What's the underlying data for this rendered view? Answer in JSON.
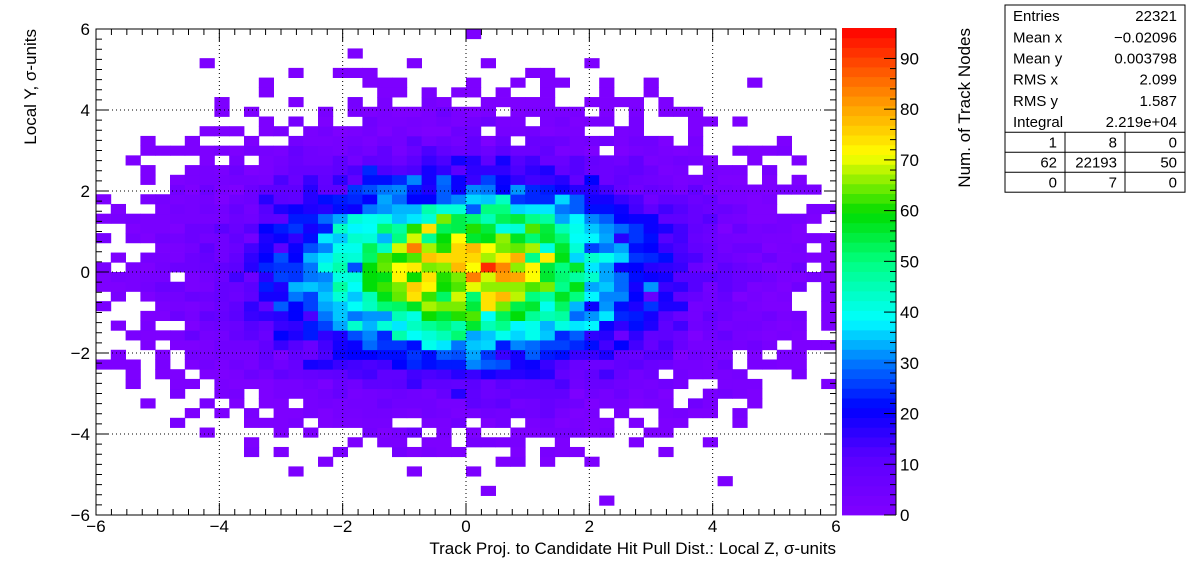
{
  "chart_data": {
    "type": "heatmap",
    "xlabel": "Track Proj. to Candidate Hit Pull Dist.: Local Z, σ-units",
    "ylabel": "Local Y, σ-units",
    "zlabel": "Num. of Track Nodes",
    "xlim": [
      -6,
      6
    ],
    "ylim": [
      -6,
      6
    ],
    "zlim": [
      0,
      96
    ],
    "bins": {
      "nx": 50,
      "ny": 50
    },
    "x_ticks": [
      "−6",
      "−4",
      "−2",
      "0",
      "2",
      "4",
      "6"
    ],
    "y_ticks": [
      "−6",
      "−4",
      "−2",
      "0",
      "2",
      "4",
      "6"
    ],
    "z_ticks": [
      "0",
      "10",
      "20",
      "30",
      "40",
      "50",
      "60",
      "70",
      "80",
      "90"
    ],
    "grid": true,
    "palette": "rainbow",
    "distribution": {
      "entries": 22321,
      "mean_x": -0.02096,
      "mean_y": 0.003798,
      "rms_x": 2.099,
      "rms_y": 1.587,
      "peak_count": 96
    }
  },
  "stats_box": {
    "rows": [
      {
        "label": "Entries",
        "value": "22321"
      },
      {
        "label": "Mean x",
        "value": "−0.02096"
      },
      {
        "label": "Mean y",
        "value": "0.003798"
      },
      {
        "label": "RMS x",
        "value": "2.099"
      },
      {
        "label": "RMS y",
        "value": "1.587"
      },
      {
        "label": "Integral",
        "value": "2.219e+04"
      }
    ],
    "overflow_grid": [
      [
        "1",
        "8",
        "0"
      ],
      [
        "62",
        "22193",
        "50"
      ],
      [
        "0",
        "7",
        "0"
      ]
    ]
  }
}
